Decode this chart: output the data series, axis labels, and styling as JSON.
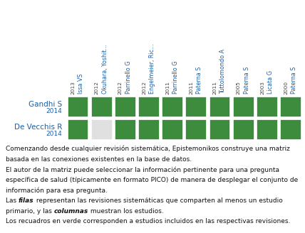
{
  "columns": [
    {
      "name": "Issa VS",
      "year": "2013"
    },
    {
      "name": "Okuhara, Yoshit...",
      "year": "2012"
    },
    {
      "name": "Parrinello G",
      "year": "2012"
    },
    {
      "name": "Engelmeier, Ric...",
      "year": "2012"
    },
    {
      "name": "Parrinello G",
      "year": "2011"
    },
    {
      "name": "Paterna S",
      "year": "2011"
    },
    {
      "name": "Tuttolomondo A",
      "year": "2011"
    },
    {
      "name": "Paterna S",
      "year": "2005"
    },
    {
      "name": "Licata G",
      "year": "2003"
    },
    {
      "name": "Paterna S",
      "year": "2000"
    }
  ],
  "rows": [
    {
      "name": "Gandhi S",
      "year": "2014",
      "values": [
        1,
        1,
        1,
        1,
        1,
        1,
        1,
        1,
        1,
        1
      ]
    },
    {
      "name": "De Vecchis R",
      "year": "2014",
      "values": [
        1,
        0,
        1,
        1,
        1,
        1,
        1,
        1,
        1,
        1
      ]
    }
  ],
  "green_color": "#3d8b3d",
  "light_gray": "#e0e0e0",
  "blue_color": "#1a5fa8",
  "year_color": "#555555",
  "background_color": "#ffffff",
  "desc_lines": [
    "Comenzando desde cualquier revisión sistemática, Epistemonikos construye una matriz",
    "basada en las conexiones existentes en la base de datos.",
    "El autor de la matriz puede seleccionar la información pertinente para una pregunta",
    "específica de salud (típicamente en formato PICO) de manera de desplegar el conjunto de",
    "información para esa pregunta.",
    "Las \u0000filas\u0000 representan las revisiones sistemáticas que comparten al menos un estudio",
    "primario, y las \u0000columnas\u0000 muestran los estudios.",
    "Los recuadros en verde corresponden a estudios incluidos en las respectivas revisiones."
  ],
  "bold_tokens": [
    "filas",
    "columnas"
  ]
}
